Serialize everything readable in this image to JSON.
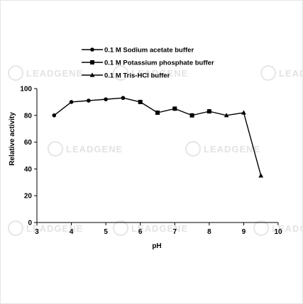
{
  "watermark": {
    "brand": "LEADGENE"
  },
  "chart_data": {
    "type": "line",
    "xlabel": "pH",
    "ylabel": "Relative activity",
    "xlim": [
      3,
      10
    ],
    "ylim": [
      0,
      100
    ],
    "xticks": [
      3,
      4,
      5,
      6,
      7,
      8,
      9,
      10
    ],
    "yticks": [
      0,
      20,
      40,
      60,
      80,
      100
    ],
    "grid": false,
    "legend_position": "top",
    "line_color": "#000000",
    "series": [
      {
        "name": "0.1 M Sodium acetate buffer",
        "marker": "circle",
        "x": [
          3.5,
          4.0,
          4.5,
          5.0,
          5.5,
          6.0
        ],
        "y": [
          80,
          90,
          91,
          92,
          93,
          90
        ]
      },
      {
        "name": "0.1 M Potassium phosphate buffer",
        "marker": "square",
        "x": [
          6.0,
          6.5,
          7.0,
          7.5,
          8.0
        ],
        "y": [
          90,
          82,
          85,
          80,
          83
        ]
      },
      {
        "name": "0.1 M Tris-HCl buffer",
        "marker": "triangle",
        "x": [
          8.0,
          8.5,
          9.0,
          9.5
        ],
        "y": [
          83,
          80,
          82,
          35
        ]
      }
    ]
  }
}
